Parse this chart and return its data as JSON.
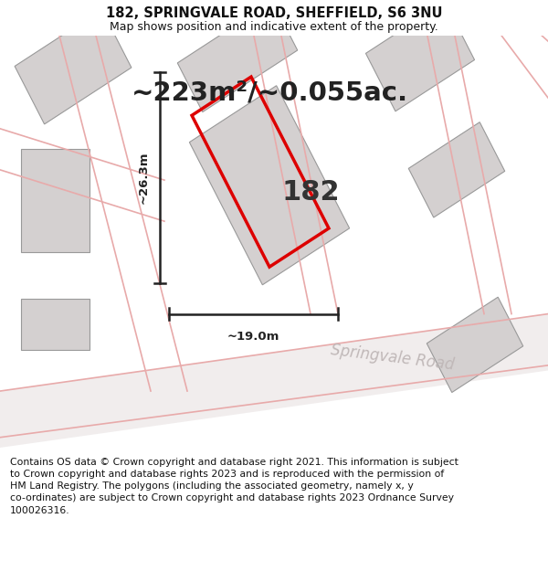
{
  "title_line1": "182, SPRINGVALE ROAD, SHEFFIELD, S6 3NU",
  "title_line2": "Map shows position and indicative extent of the property.",
  "area_text": "~223m²/~0.055ac.",
  "label_182": "182",
  "dim_width": "~19.0m",
  "dim_height": "~26.3m",
  "road_label": "Springvale Road",
  "footer_text": "Contains OS data © Crown copyright and database right 2021. This information is subject\nto Crown copyright and database rights 2023 and is reproduced with the permission of\nHM Land Registry. The polygons (including the associated geometry, namely x, y\nco-ordinates) are subject to Crown copyright and database rights 2023 Ordnance Survey\n100026316.",
  "bg_color": "#f2f0f0",
  "map_bg": "#f2f0f0",
  "footer_bg": "#ffffff",
  "plot_color": "#dd0000",
  "building_fill": "#d4d0d0",
  "building_edge": "#aaaaaa",
  "road_line_color": "#e8aaaa",
  "dim_line_color": "#222222",
  "title_fontsize": 10.5,
  "subtitle_fontsize": 9.0,
  "area_fontsize": 21,
  "label_fontsize": 22,
  "road_label_fontsize": 12,
  "footer_fontsize": 7.8,
  "dim_fontsize": 9.5
}
